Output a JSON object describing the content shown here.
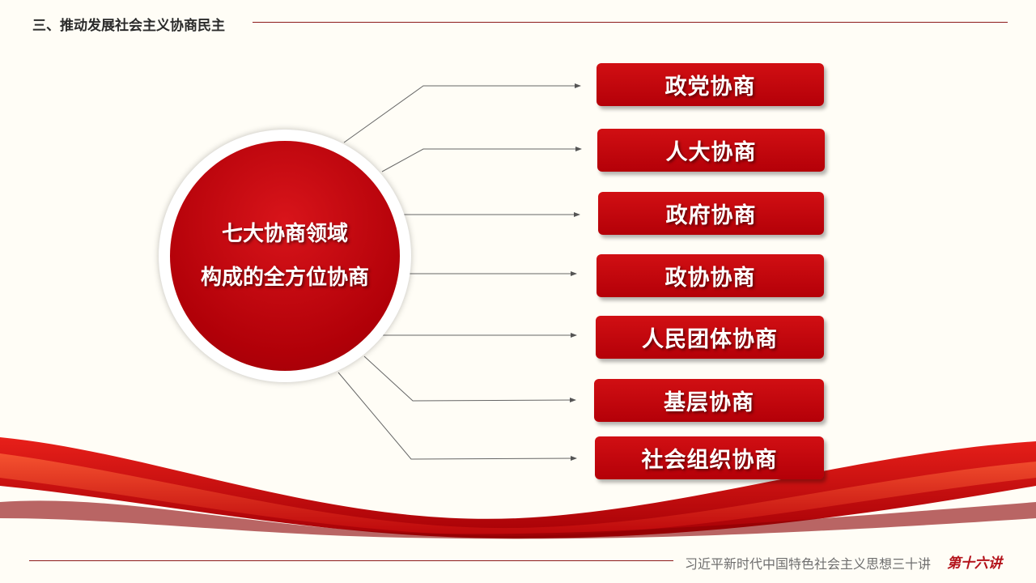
{
  "header": {
    "title": "三、推动发展社会主义协商民主"
  },
  "center": {
    "line1": "七大协商领域",
    "line2": "构成的全方位协商"
  },
  "items": [
    {
      "label": "政党协商"
    },
    {
      "label": "人大协商"
    },
    {
      "label": "政府协商"
    },
    {
      "label": "政协协商"
    },
    {
      "label": "人民团体协商"
    },
    {
      "label": "基层协商"
    },
    {
      "label": "社会组织协商"
    }
  ],
  "footer": {
    "series": "习近平新时代中国特色社会主义思想三十讲",
    "lecture": "第十六讲"
  },
  "colors": {
    "accent": "#c00a10",
    "background": "#fffdf6"
  }
}
